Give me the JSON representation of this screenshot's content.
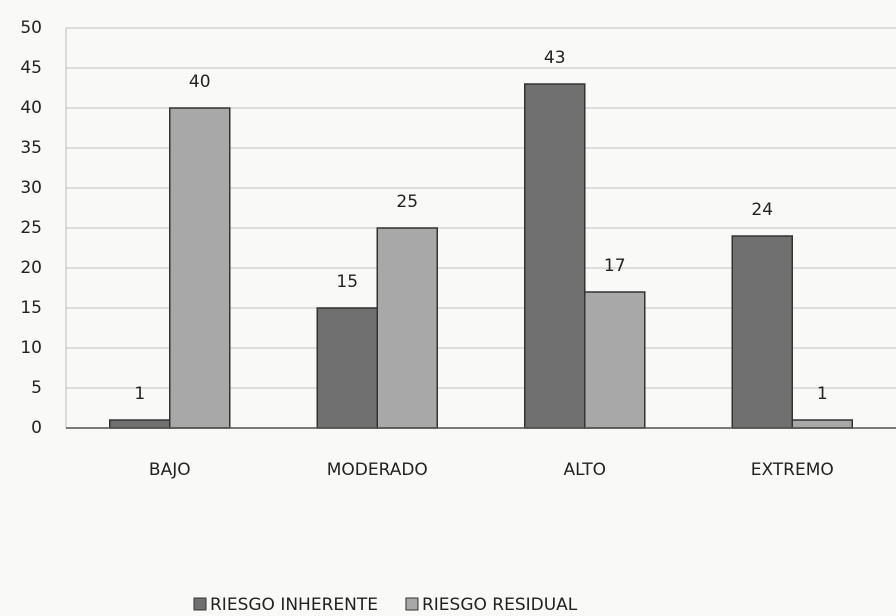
{
  "chart_data": {
    "type": "bar",
    "categories": [
      "BAJO",
      "MODERADO",
      "ALTO",
      "EXTREMO"
    ],
    "series": [
      {
        "name": "RIESGO INHERENTE",
        "color": "#707070",
        "values": [
          1,
          15,
          43,
          24
        ]
      },
      {
        "name": "RIESGO RESIDUAL",
        "color": "#a8a8a8",
        "values": [
          40,
          25,
          17,
          1
        ]
      }
    ],
    "ylim": [
      0,
      50
    ],
    "yticks": [
      0,
      5,
      10,
      15,
      20,
      25,
      30,
      35,
      40,
      45,
      50
    ],
    "grid": true,
    "data_labels": true,
    "legend": "bottom"
  }
}
